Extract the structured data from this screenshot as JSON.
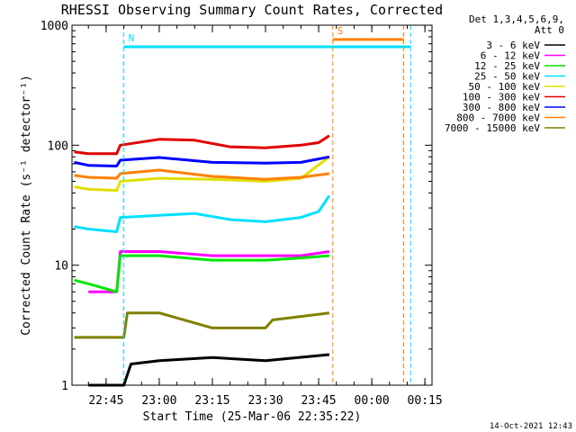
{
  "chart_data": {
    "type": "line",
    "title": "RHESSI Observing Summary Count Rates, Corrected",
    "xlabel": "Start Time (25-Mar-06 22:35:22)",
    "ylabel": "Corrected Count Rate (s⁻¹ detector⁻¹)",
    "y_scale": "log",
    "ylim": [
      1,
      1000
    ],
    "xlim": [
      "22:35:22",
      "00:17:00"
    ],
    "y_ticks": [
      {
        "value": 1,
        "label": "1"
      },
      {
        "value": 10,
        "label": "10"
      },
      {
        "value": 100,
        "label": "100"
      },
      {
        "value": 1000,
        "label": "1000"
      }
    ],
    "x_ticks": [
      "22:45",
      "23:00",
      "23:15",
      "23:30",
      "23:45",
      "00:00",
      "00:15"
    ],
    "legend_placement": "right",
    "legend_header": [
      "Det 1,3,4,5,6,9,",
      "Att 0"
    ],
    "series": [
      {
        "name": "3 - 6 keV",
        "color": "#000000",
        "points": [
          [
            "22:40",
            1
          ],
          [
            "22:50",
            1
          ],
          [
            "22:52",
            1.5
          ],
          [
            "23:00",
            1.6
          ],
          [
            "23:15",
            1.7
          ],
          [
            "23:30",
            1.6
          ],
          [
            "23:48",
            1.8
          ]
        ]
      },
      {
        "name": "6 - 12 keV",
        "color": "#ff00ff",
        "points": [
          [
            "22:40",
            6
          ],
          [
            "22:48",
            6
          ],
          [
            "22:49",
            13
          ],
          [
            "23:00",
            13
          ],
          [
            "23:15",
            12
          ],
          [
            "23:30",
            12
          ],
          [
            "23:40",
            12
          ],
          [
            "23:48",
            13
          ]
        ]
      },
      {
        "name": "12 - 25 keV",
        "color": "#00e600",
        "points": [
          [
            "22:36",
            7.5
          ],
          [
            "22:40",
            7
          ],
          [
            "22:48",
            6
          ],
          [
            "22:49",
            12
          ],
          [
            "23:00",
            12
          ],
          [
            "23:15",
            11
          ],
          [
            "23:30",
            11
          ],
          [
            "23:40",
            11.5
          ],
          [
            "23:48",
            12
          ]
        ]
      },
      {
        "name": "25 - 50 keV",
        "color": "#00e0ff",
        "points": [
          [
            "22:36",
            21
          ],
          [
            "22:40",
            20
          ],
          [
            "22:48",
            19
          ],
          [
            "22:49",
            25
          ],
          [
            "23:00",
            26
          ],
          [
            "23:10",
            27
          ],
          [
            "23:20",
            24
          ],
          [
            "23:30",
            23
          ],
          [
            "23:40",
            25
          ],
          [
            "23:45",
            28
          ],
          [
            "23:48",
            38
          ]
        ]
      },
      {
        "name": "50 - 100 keV",
        "color": "#e0e000",
        "points": [
          [
            "22:36",
            45
          ],
          [
            "22:40",
            43
          ],
          [
            "22:48",
            42
          ],
          [
            "22:49",
            50
          ],
          [
            "23:00",
            53
          ],
          [
            "23:15",
            52
          ],
          [
            "23:30",
            50
          ],
          [
            "23:40",
            53
          ],
          [
            "23:48",
            80
          ]
        ]
      },
      {
        "name": "100 - 300 keV",
        "color": "#e00000",
        "points": [
          [
            "22:36",
            88
          ],
          [
            "22:40",
            85
          ],
          [
            "22:48",
            85
          ],
          [
            "22:49",
            100
          ],
          [
            "23:00",
            112
          ],
          [
            "23:10",
            110
          ],
          [
            "23:20",
            97
          ],
          [
            "23:30",
            95
          ],
          [
            "23:40",
            100
          ],
          [
            "23:45",
            105
          ],
          [
            "23:48",
            120
          ]
        ]
      },
      {
        "name": "300 - 800 keV",
        "color": "#0000ff",
        "points": [
          [
            "22:36",
            72
          ],
          [
            "22:40",
            68
          ],
          [
            "22:48",
            67
          ],
          [
            "22:49",
            75
          ],
          [
            "23:00",
            79
          ],
          [
            "23:15",
            72
          ],
          [
            "23:30",
            71
          ],
          [
            "23:40",
            72
          ],
          [
            "23:48",
            80
          ]
        ]
      },
      {
        "name": "800 - 7000 keV",
        "color": "#ff8000",
        "points": [
          [
            "22:36",
            56
          ],
          [
            "22:40",
            54
          ],
          [
            "22:48",
            53
          ],
          [
            "22:49",
            58
          ],
          [
            "23:00",
            62
          ],
          [
            "23:15",
            55
          ],
          [
            "23:30",
            52
          ],
          [
            "23:40",
            54
          ],
          [
            "23:48",
            58
          ]
        ]
      },
      {
        "name": "7000 - 15000 keV",
        "color": "#808000",
        "points": [
          [
            "22:36",
            2.5
          ],
          [
            "22:50",
            2.5
          ],
          [
            "22:51",
            4
          ],
          [
            "23:00",
            4
          ],
          [
            "23:15",
            3
          ],
          [
            "23:30",
            3
          ],
          [
            "23:32",
            3.5
          ],
          [
            "23:48",
            4
          ]
        ]
      }
    ],
    "flag_markers": [
      {
        "label": "N",
        "color": "#00e0ff",
        "start": "22:50",
        "end": "00:11",
        "level": 660
      },
      {
        "label": "S",
        "color": "#ff8000",
        "start": "23:49",
        "end": "00:09",
        "level": 760
      }
    ],
    "footer_date": "14-Oct-2021 12:43"
  }
}
